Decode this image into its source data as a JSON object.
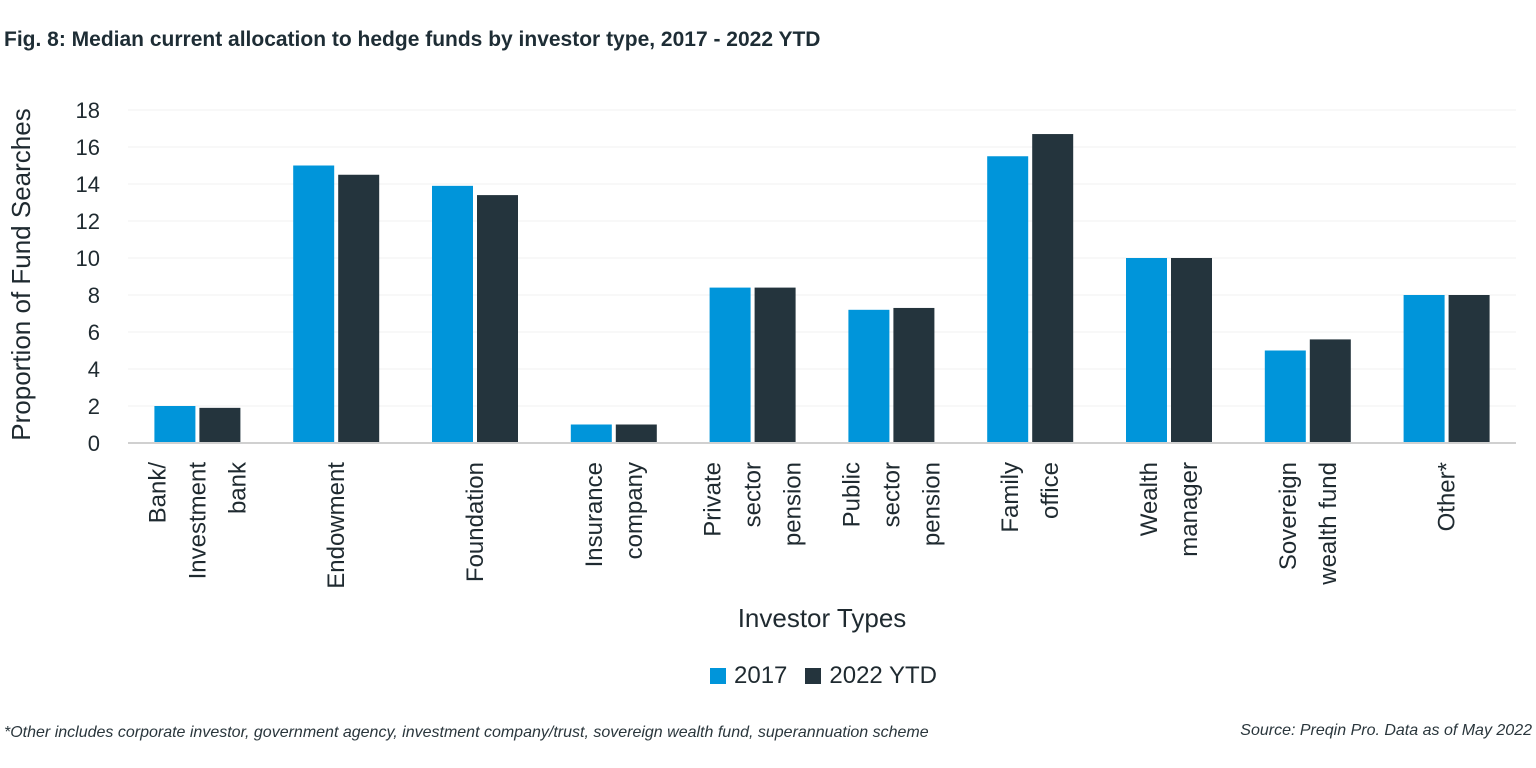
{
  "title": "Fig. 8: Median current allocation to hedge funds by investor type, 2017 - 2022 YTD",
  "footnote": "*Other includes corporate investor, government agency, investment company/trust, sovereign wealth fund, superannuation scheme",
  "source": "Source: Preqin Pro. Data as of May 2022",
  "chart_data": {
    "type": "bar",
    "title": "Fig. 8: Median current allocation to hedge funds by investor type, 2017 - 2022 YTD",
    "xlabel": "Investor Types",
    "ylabel": "Proportion of Fund Searches",
    "ylim": [
      0,
      18
    ],
    "yticks": [
      0,
      2,
      4,
      6,
      8,
      10,
      12,
      14,
      16,
      18
    ],
    "grid": true,
    "legend_position": "bottom",
    "categories": [
      [
        "Bank/",
        "Investment",
        "bank"
      ],
      [
        "Endowment"
      ],
      [
        "Foundation"
      ],
      [
        "Insurance",
        "company"
      ],
      [
        "Private",
        "sector",
        "pension"
      ],
      [
        "Public",
        "sector",
        "pension"
      ],
      [
        "Family",
        "office"
      ],
      [
        "Wealth",
        "manager"
      ],
      [
        "Sovereign",
        "wealth fund"
      ],
      [
        "Other*"
      ]
    ],
    "series": [
      {
        "name": "2017",
        "color": "#0095da",
        "values": [
          2.0,
          15.0,
          13.9,
          1.0,
          8.4,
          7.2,
          15.5,
          10.0,
          5.0,
          8.0
        ]
      },
      {
        "name": "2022 YTD",
        "color": "#24343d",
        "values": [
          1.9,
          14.5,
          13.4,
          1.0,
          8.4,
          7.3,
          16.7,
          10.0,
          5.6,
          8.0
        ]
      }
    ]
  }
}
